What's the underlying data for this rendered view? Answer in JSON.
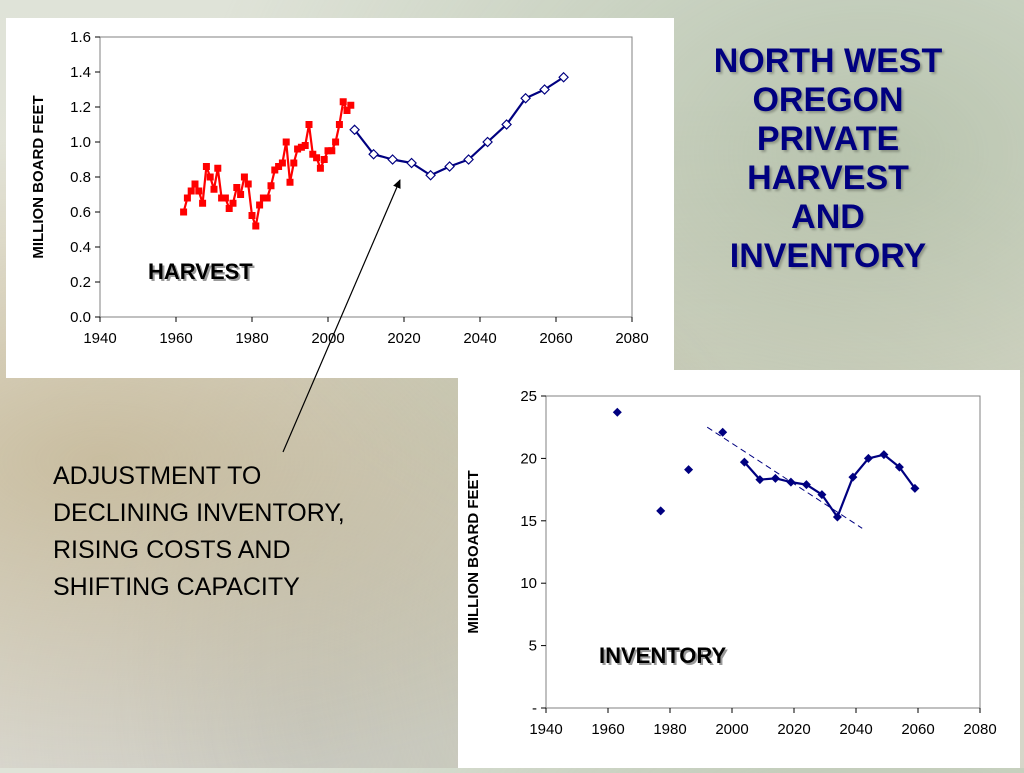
{
  "slide": {
    "title_lines": [
      "NORTH WEST",
      "OREGON",
      "PRIVATE",
      "HARVEST",
      "AND",
      "INVENTORY"
    ],
    "note_lines": [
      "ADJUSTMENT TO",
      "DECLINING INVENTORY,",
      "RISING COSTS AND",
      "SHIFTING CAPACITY"
    ]
  },
  "colors": {
    "harvest_series": "#ff0000",
    "projection_series": "#000080",
    "title": "#000080"
  },
  "chart_data": [
    {
      "id": "harvest",
      "type": "line",
      "label": "HARVEST",
      "ylabel": "MILLION BOARD FEET",
      "xlim": [
        1940,
        2080
      ],
      "ylim": [
        0,
        1.6
      ],
      "x_ticks": [
        "1940",
        "1960",
        "1980",
        "2000",
        "2020",
        "2040",
        "2060",
        "2080"
      ],
      "y_ticks": [
        "0.0",
        "0.2",
        "0.4",
        "0.6",
        "0.8",
        "1.0",
        "1.2",
        "1.4",
        "1.6"
      ],
      "series": [
        {
          "marker": "square",
          "color": "#ff0000",
          "x": [
            1962,
            1963,
            1964,
            1965,
            1966,
            1967,
            1968,
            1969,
            1970,
            1971,
            1972,
            1973,
            1974,
            1975,
            1976,
            1977,
            1978,
            1979,
            1980,
            1981,
            1982,
            1983,
            1984,
            1985,
            1986,
            1987,
            1988,
            1989,
            1990,
            1991,
            1992,
            1993,
            1994,
            1995,
            1996,
            1997,
            1998,
            1999,
            2000,
            2001,
            2002,
            2003,
            2004,
            2005,
            2006
          ],
          "y": [
            0.6,
            0.68,
            0.72,
            0.76,
            0.72,
            0.65,
            0.86,
            0.8,
            0.73,
            0.85,
            0.68,
            0.68,
            0.62,
            0.65,
            0.74,
            0.7,
            0.8,
            0.76,
            0.58,
            0.52,
            0.64,
            0.68,
            0.68,
            0.75,
            0.84,
            0.86,
            0.88,
            1.0,
            0.77,
            0.88,
            0.96,
            0.97,
            0.98,
            1.1,
            0.93,
            0.91,
            0.85,
            0.9,
            0.95,
            0.95,
            1.0,
            1.1,
            1.23,
            1.18,
            1.21
          ]
        },
        {
          "marker": "diamond-open",
          "color": "#000080",
          "x": [
            2007,
            2012,
            2017,
            2022,
            2027,
            2032,
            2037,
            2042,
            2047,
            2052,
            2057,
            2062
          ],
          "y": [
            1.07,
            0.93,
            0.9,
            0.88,
            0.81,
            0.86,
            0.9,
            1.0,
            1.1,
            1.25,
            1.3,
            1.37
          ]
        }
      ]
    },
    {
      "id": "inventory",
      "type": "line",
      "label": "INVENTORY",
      "ylabel": "MILLION BOARD FEET",
      "xlim": [
        1940,
        2080
      ],
      "ylim": [
        0,
        25
      ],
      "x_ticks": [
        "1940",
        "1960",
        "1980",
        "2000",
        "2020",
        "2040",
        "2060",
        "2080"
      ],
      "y_ticks": [
        "-",
        "5",
        "10",
        "15",
        "20",
        "25"
      ],
      "series": [
        {
          "marker": "diamond",
          "connected": false,
          "color": "#000080",
          "x": [
            1963,
            1977,
            1986,
            1997
          ],
          "y": [
            23.7,
            15.8,
            19.1,
            22.1
          ]
        },
        {
          "marker": "diamond",
          "connected": true,
          "color": "#000080",
          "x": [
            2004,
            2009,
            2014,
            2019,
            2024,
            2029,
            2034,
            2039,
            2044,
            2049,
            2054,
            2059
          ],
          "y": [
            19.7,
            18.3,
            18.4,
            18.1,
            17.9,
            17.1,
            15.3,
            18.5,
            20.0,
            20.3,
            19.3,
            17.6
          ]
        }
      ],
      "trendline": {
        "style": "dashed",
        "color": "#000080",
        "x": [
          1992,
          2042
        ],
        "y": [
          22.5,
          14.4
        ]
      }
    }
  ]
}
